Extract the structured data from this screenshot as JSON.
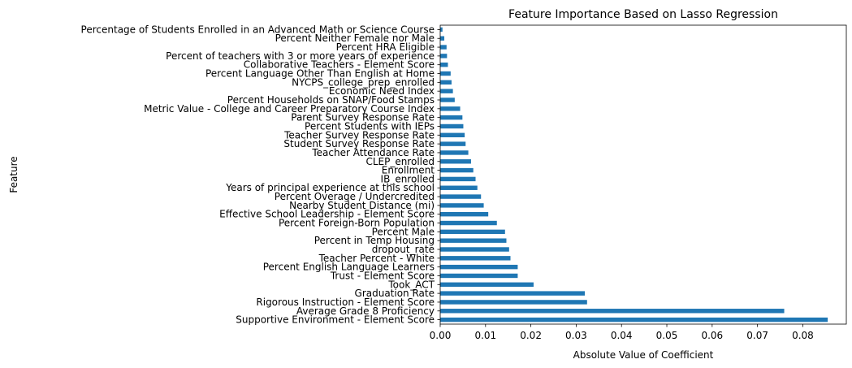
{
  "chart_data": {
    "type": "bar",
    "orientation": "horizontal",
    "title": "Feature Importance Based on Lasso Regression",
    "xlabel": "Absolute Value of Coefficient",
    "ylabel": "Feature",
    "xlim": [
      0,
      0.0896
    ],
    "xticks": [
      "0.00",
      "0.01",
      "0.02",
      "0.03",
      "0.04",
      "0.05",
      "0.06",
      "0.07",
      "0.08"
    ],
    "bar_color": "#1f77b4",
    "grid": false,
    "legend": "none",
    "categories": [
      "Supportive Environment - Element Score",
      "Average Grade 8 Proficiency",
      "Rigorous Instruction - Element Score",
      "Graduation Rate",
      "Took_ACT",
      "Trust - Element Score",
      "Percent English Language Learners",
      "Teacher Percent - White",
      "dropout_rate",
      "Percent in Temp Housing",
      "Percent Male",
      "Percent Foreign-Born Population",
      "Effective School Leadership - Element Score",
      "Nearby Student Distance (mi)",
      "Percent Overage / Undercredited",
      "Years of principal experience at this school",
      "IB_enrolled",
      "Enrollment",
      "CLEP_enrolled",
      "Teacher Attendance Rate",
      "Student Survey Response Rate",
      "Teacher Survey Response Rate",
      "Percent Students with IEPs",
      "Parent Survey Response Rate",
      "Metric Value - College and Career Preparatory Course Index",
      "Percent Households on SNAP/Food Stamps",
      "Economic Need Index",
      "NYCPS_college_prep_enrolled",
      "Percent Language Other Than English at Home",
      "Collaborative Teachers - Element Score",
      "Percent of teachers with 3 or more years of experience",
      "Percent HRA Eligible",
      "Percent Neither Female nor Male",
      "Percentage of Students Enrolled in an Advanced Math or Science Course"
    ],
    "values": [
      0.0855,
      0.0759,
      0.0324,
      0.0319,
      0.0206,
      0.0171,
      0.0171,
      0.0155,
      0.0152,
      0.0146,
      0.0143,
      0.0125,
      0.0106,
      0.0096,
      0.009,
      0.0082,
      0.0078,
      0.0073,
      0.0068,
      0.0062,
      0.0056,
      0.0054,
      0.0051,
      0.0049,
      0.0044,
      0.0032,
      0.0028,
      0.0025,
      0.0023,
      0.0017,
      0.0015,
      0.0014,
      0.0009,
      0.0005
    ]
  }
}
